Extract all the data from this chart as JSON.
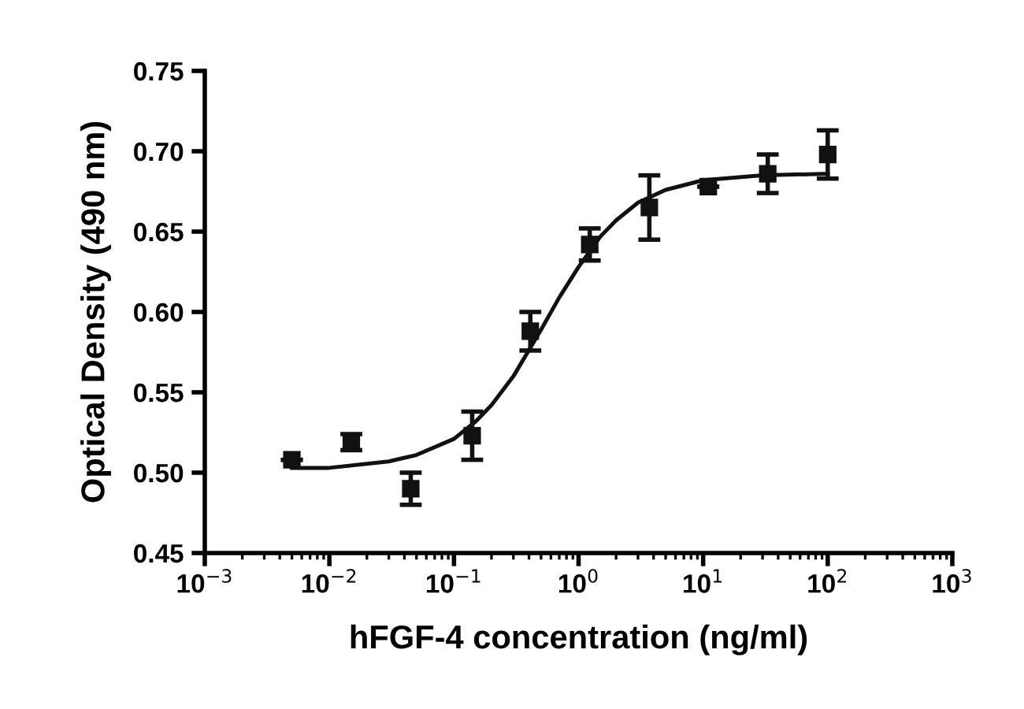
{
  "chart_data": {
    "type": "scatter",
    "xlabel": "hFGF-4 concentration (ng/ml)",
    "ylabel": "Optical Density (490 nm)",
    "log": "x",
    "xlim": [
      0.001,
      1000
    ],
    "xticks": [
      {
        "value": 0.001,
        "label": "10$^{−3}$"
      },
      {
        "value": 0.01,
        "label": "10$^{−2}$"
      },
      {
        "value": 0.1,
        "label": "10$^{−1}$"
      },
      {
        "value": 1,
        "label": "10$^{0}$"
      },
      {
        "value": 10,
        "label": "10$^{1}$"
      },
      {
        "value": 100,
        "label": "10$^{2}$"
      },
      {
        "value": 1000,
        "label": "10$^{3}$"
      }
    ],
    "ylim": [
      0.45,
      0.75
    ],
    "yticks": [
      {
        "value": 0.45,
        "label": "0.45"
      },
      {
        "value": 0.5,
        "label": "0.50"
      },
      {
        "value": 0.55,
        "label": "0.55"
      },
      {
        "value": 0.6,
        "label": "0.60"
      },
      {
        "value": 0.65,
        "label": "0.65"
      },
      {
        "value": 0.7,
        "label": "0.70"
      },
      {
        "value": 0.75,
        "label": "0.75"
      }
    ],
    "grid": false,
    "legend": false,
    "series": [
      {
        "marker": "square",
        "color": "#111111",
        "x": [
          0.005,
          0.015,
          0.045,
          0.14,
          0.41,
          1.23,
          3.7,
          11,
          33,
          100
        ],
        "values": [
          0.508,
          0.519,
          0.49,
          0.523,
          0.588,
          0.642,
          0.665,
          0.678,
          0.686,
          0.698
        ],
        "errors": [
          null,
          0.005,
          0.01,
          0.015,
          0.012,
          0.01,
          0.02,
          null,
          0.012,
          0.015
        ]
      },
      {
        "type": "line",
        "line_style": "solid",
        "color": "#111111",
        "x": [
          0.005,
          0.01,
          0.03,
          0.05,
          0.1,
          0.15,
          0.2,
          0.3,
          0.5,
          0.7,
          1,
          1.5,
          2,
          3,
          5,
          10,
          30,
          100
        ],
        "values": [
          0.503,
          0.503,
          0.507,
          0.511,
          0.521,
          0.532,
          0.542,
          0.56,
          0.589,
          0.609,
          0.628,
          0.647,
          0.657,
          0.668,
          0.676,
          0.682,
          0.685,
          0.686
        ]
      }
    ]
  }
}
